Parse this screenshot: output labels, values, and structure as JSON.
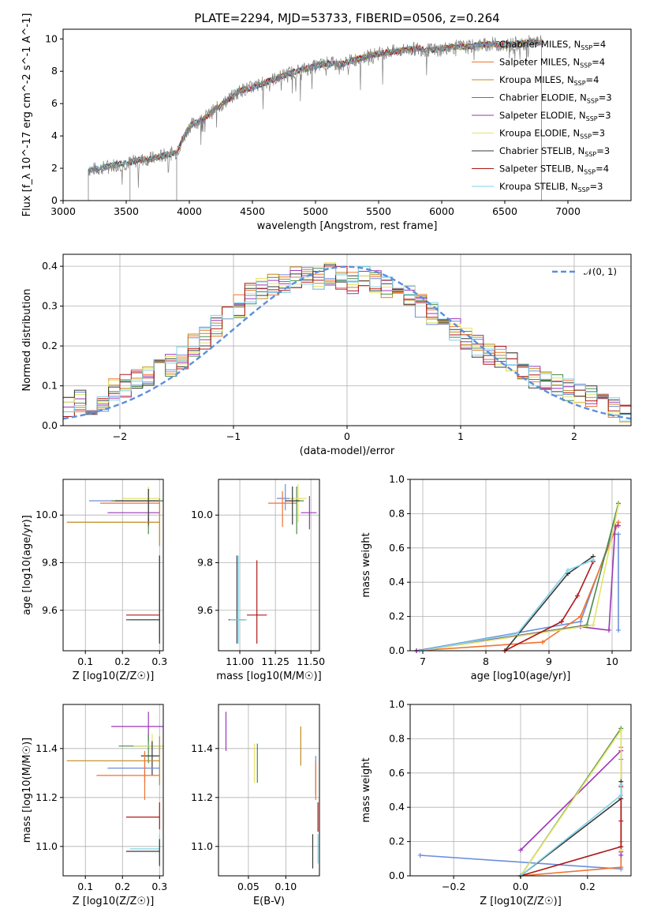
{
  "figure": {
    "title": "PLATE=2294, MJD=53733, FIBERID=0506, z=0.264"
  },
  "models": [
    {
      "name": "Chabrier MILES, N$_{SSP}$=4",
      "label": "Chabrier MILES, N",
      "nssp": "4",
      "color": "#6a8fdc"
    },
    {
      "name": "Salpeter MILES, N$_{SSP}$=4",
      "label": "Salpeter MILES, N",
      "nssp": "4",
      "color": "#f0722f"
    },
    {
      "name": "Kroupa MILES, N$_{SSP}$=4",
      "label": "Kroupa MILES, N",
      "nssp": "4",
      "color": "#c08a1c"
    },
    {
      "name": "Chabrier ELODIE, N$_{SSP}$=3",
      "label": "Chabrier ELODIE, N",
      "nssp": "3",
      "color": "#4a8a4a"
    },
    {
      "name": "Salpeter ELODIE, N$_{SSP}$=3",
      "label": "Salpeter ELODIE, N",
      "nssp": "3",
      "color": "#9b36b7"
    },
    {
      "name": "Kroupa ELODIE, N$_{SSP}$=3",
      "label": "Kroupa ELODIE, N",
      "nssp": "3",
      "color": "#e3e36a"
    },
    {
      "name": "Chabrier STELIB, N$_{SSP}$=3",
      "label": "Chabrier STELIB, N",
      "nssp": "3",
      "color": "#3a3a3a"
    },
    {
      "name": "Salpeter STELIB, N$_{SSP}$=4",
      "label": "Salpeter STELIB, N",
      "nssp": "4",
      "color": "#b01818"
    },
    {
      "name": "Kroupa STELIB, N$_{SSP}$=3",
      "label": "Kroupa STELIB, N",
      "nssp": "3",
      "color": "#7fd3e8"
    }
  ],
  "chart_data": [
    {
      "id": "spectrum",
      "type": "line",
      "title": "PLATE=2294, MJD=53733, FIBERID=0506, z=0.264",
      "xlabel": "wavelength [Angstrom, rest frame]",
      "ylabel": "Flux [f_λ 10^-17 erg cm^-2 s^-1 A^-1]",
      "xlim": [
        3000,
        7500
      ],
      "ylim": [
        0,
        10.6
      ],
      "xticks": [
        "3000",
        "3500",
        "4000",
        "4500",
        "5000",
        "5500",
        "6000",
        "6500",
        "7000"
      ],
      "yticks": [
        "0",
        "2",
        "4",
        "6",
        "8",
        "10"
      ],
      "legend_position": "upper right",
      "series": [
        {
          "name": "data",
          "color": "#808080",
          "x": [
            3200,
            3300,
            3400,
            3500,
            3600,
            3700,
            3800,
            3900,
            4000,
            4100,
            4200,
            4300,
            4400,
            4500,
            4600,
            4700,
            4800,
            4900,
            5000,
            5100,
            5200,
            5300,
            5400,
            5500,
            5600,
            5700,
            5800,
            5900,
            6000,
            6100,
            6200,
            6300,
            6400,
            6500,
            6600,
            6700,
            6800
          ],
          "y": [
            1.9,
            2.0,
            2.2,
            2.3,
            2.5,
            2.6,
            2.8,
            3.0,
            4.6,
            5.0,
            5.6,
            6.2,
            6.8,
            7.0,
            7.3,
            7.6,
            7.9,
            8.1,
            8.3,
            8.5,
            8.4,
            8.7,
            8.9,
            9.1,
            9.2,
            9.3,
            9.4,
            9.3,
            9.4,
            9.5,
            9.5,
            9.6,
            9.7,
            9.6,
            9.7,
            9.8,
            9.8
          ]
        }
      ]
    },
    {
      "id": "residual-histogram",
      "type": "bar",
      "xlabel": "(data-model)/error",
      "ylabel": "Normed distribution",
      "xlim": [
        -2.5,
        2.5
      ],
      "ylim": [
        0,
        0.43
      ],
      "xticks": [
        "−2",
        "−1",
        "0",
        "1",
        "2"
      ],
      "yticks": [
        "0.0",
        "0.1",
        "0.2",
        "0.3",
        "0.4"
      ],
      "legend": "N(0,1)",
      "bin_width": 0.1,
      "bin_start": -2.5,
      "values": [
        0.05,
        0.06,
        0.05,
        0.06,
        0.09,
        0.1,
        0.12,
        0.12,
        0.14,
        0.15,
        0.17,
        0.2,
        0.22,
        0.25,
        0.28,
        0.3,
        0.33,
        0.34,
        0.35,
        0.36,
        0.37,
        0.38,
        0.37,
        0.38,
        0.37,
        0.36,
        0.37,
        0.36,
        0.35,
        0.34,
        0.33,
        0.3,
        0.28,
        0.26,
        0.24,
        0.22,
        0.2,
        0.18,
        0.17,
        0.16,
        0.13,
        0.12,
        0.11,
        0.1,
        0.09,
        0.08,
        0.07,
        0.06,
        0.04,
        0.03
      ],
      "normal_curve": {
        "mean": 0,
        "sigma": 1
      }
    },
    {
      "id": "age-vs-Z",
      "type": "scatter",
      "xlabel": "Z [log10(Z/Z☉)]",
      "ylabel": "age [log10(age/yr)]",
      "xlim": [
        0.04,
        0.31
      ],
      "ylim": [
        9.43,
        10.15
      ],
      "xticks": [
        "0.1",
        "0.2",
        "0.3"
      ],
      "yticks": [
        "9.6",
        "9.8",
        "10.0"
      ],
      "points": [
        {
          "series": 0,
          "x": 0.27,
          "y": 10.06,
          "xerr": [
            0.16,
            0.04
          ],
          "yerr": [
            0.1,
            0.05
          ]
        },
        {
          "series": 1,
          "x": 0.27,
          "y": 10.05,
          "xerr": [
            0.13,
            0.03
          ],
          "yerr": [
            0.1,
            0.05
          ]
        },
        {
          "series": 3,
          "x": 0.27,
          "y": 10.06,
          "xerr": [
            0.1,
            0.04
          ],
          "yerr": [
            0.14,
            0.05
          ]
        },
        {
          "series": 4,
          "x": 0.27,
          "y": 10.01,
          "xerr": [
            0.11,
            0.03
          ],
          "yerr": [
            0.05,
            0.05
          ]
        },
        {
          "series": 5,
          "x": 0.27,
          "y": 10.07,
          "xerr": [
            0.07,
            0.03
          ],
          "yerr": [
            0.08,
            0.05
          ]
        },
        {
          "series": 6,
          "x": 0.27,
          "y": 10.06,
          "xerr": [
            0.09,
            0.03
          ],
          "yerr": [
            0.1,
            0.05
          ]
        },
        {
          "series": 2,
          "x": 0.3,
          "y": 9.97,
          "xerr": [
            0.25,
            0.0
          ],
          "yerr": [
            0.1,
            0.1
          ]
        },
        {
          "series": 7,
          "x": 0.3,
          "y": 9.58,
          "xerr": [
            0.09,
            0.0
          ],
          "yerr": [
            0.1,
            0.25
          ]
        },
        {
          "series": 8,
          "x": 0.3,
          "y": 9.56,
          "xerr": [
            0.08,
            0.0
          ],
          "yerr": [
            0.1,
            0.27
          ]
        },
        {
          "series": 6,
          "x": 0.3,
          "y": 9.56,
          "xerr": [
            0.09,
            0.0
          ],
          "yerr": [
            0.1,
            0.27
          ]
        }
      ]
    },
    {
      "id": "age-vs-mass",
      "type": "scatter",
      "xlabel": "mass [log10(M/M☉)]",
      "ylabel": "",
      "xlim": [
        10.85,
        11.56
      ],
      "ylim": [
        9.43,
        10.15
      ],
      "xticks": [
        "11.00",
        "11.25",
        "11.50"
      ],
      "yticks": [
        "9.6",
        "9.8",
        "10.0"
      ],
      "points": [
        {
          "series": 0,
          "x": 11.32,
          "y": 10.07,
          "xerr": [
            0.06,
            0.06
          ],
          "yerr": [
            0.05,
            0.06
          ]
        },
        {
          "series": 1,
          "x": 11.3,
          "y": 10.05,
          "xerr": [
            0.1,
            0.1
          ],
          "yerr": [
            0.1,
            0.05
          ]
        },
        {
          "series": 3,
          "x": 11.4,
          "y": 10.06,
          "xerr": [
            0.05,
            0.05
          ],
          "yerr": [
            0.14,
            0.06
          ]
        },
        {
          "series": 4,
          "x": 11.49,
          "y": 10.01,
          "xerr": [
            0.06,
            0.05
          ],
          "yerr": [
            0.07,
            0.07
          ]
        },
        {
          "series": 5,
          "x": 11.41,
          "y": 10.07,
          "xerr": [
            0.06,
            0.06
          ],
          "yerr": [
            0.1,
            0.06
          ]
        },
        {
          "series": 6,
          "x": 11.37,
          "y": 10.06,
          "xerr": [
            0.05,
            0.05
          ],
          "yerr": [
            0.1,
            0.06
          ]
        },
        {
          "series": 7,
          "x": 11.12,
          "y": 9.58,
          "xerr": [
            0.07,
            0.07
          ],
          "yerr": [
            0.12,
            0.23
          ]
        },
        {
          "series": 6,
          "x": 10.98,
          "y": 9.56,
          "xerr": [
            0.06,
            0.06
          ],
          "yerr": [
            0.1,
            0.27
          ]
        },
        {
          "series": 8,
          "x": 10.99,
          "y": 9.56,
          "xerr": [
            0.06,
            0.06
          ],
          "yerr": [
            0.1,
            0.27
          ]
        }
      ]
    },
    {
      "id": "mass-weight-vs-age",
      "type": "line",
      "xlabel": "age [log10(age/yr)]",
      "ylabel": "mass weight",
      "xlim": [
        6.8,
        10.3
      ],
      "ylim": [
        0,
        1.0
      ],
      "xticks": [
        "7",
        "8",
        "9",
        "10"
      ],
      "yticks": [
        "0.0",
        "0.2",
        "0.4",
        "0.6",
        "0.8",
        "1.0"
      ],
      "series": [
        {
          "series": 0,
          "x": [
            6.9,
            9.5,
            10.0,
            10.1,
            10.1
          ],
          "y": [
            0.0,
            0.17,
            0.68,
            0.68,
            0.12
          ]
        },
        {
          "series": 1,
          "x": 6.9,
          "y": 0,
          "x_list": [
            6.9,
            8.9,
            9.5,
            10.1
          ],
          "y_list": [
            0.0,
            0.05,
            0.2,
            0.75
          ]
        },
        {
          "series": 3,
          "x_list": [
            6.9,
            9.6,
            10.1
          ],
          "y_list": [
            0.0,
            0.15,
            0.86
          ]
        },
        {
          "series": 4,
          "x_list": [
            6.9,
            9.5,
            9.95,
            10.05,
            10.1
          ],
          "y_list": [
            0.0,
            0.14,
            0.12,
            0.73,
            0.73
          ]
        },
        {
          "series": 5,
          "x_list": [
            6.95,
            9.7,
            10.1
          ],
          "y_list": [
            0.0,
            0.15,
            0.85
          ]
        },
        {
          "series": 6,
          "x_list": [
            8.3,
            9.3,
            9.7
          ],
          "y_list": [
            0.0,
            0.45,
            0.55
          ]
        },
        {
          "series": 7,
          "x_list": [
            8.3,
            9.2,
            9.45,
            9.7
          ],
          "y_list": [
            0.0,
            0.17,
            0.32,
            0.52
          ]
        },
        {
          "series": 8,
          "x_list": [
            6.95,
            8.5,
            9.3,
            9.7
          ],
          "y_list": [
            0.0,
            0.1,
            0.47,
            0.53
          ]
        }
      ]
    },
    {
      "id": "mass-vs-Z",
      "type": "scatter",
      "xlabel": "Z [log10(Z/Z☉)]",
      "ylabel": "mass [log10(M/M☉)]",
      "xlim": [
        0.04,
        0.31
      ],
      "ylim": [
        10.88,
        11.58
      ],
      "xticks": [
        "0.1",
        "0.2",
        "0.3"
      ],
      "yticks": [
        "11.0",
        "11.2",
        "11.4"
      ],
      "points": [
        {
          "series": 4,
          "x": 0.27,
          "y": 11.49,
          "xerr": [
            0.1,
            0.04
          ],
          "yerr": [
            0.06,
            0.06
          ]
        },
        {
          "series": 3,
          "x": 0.27,
          "y": 11.41,
          "xerr": [
            0.08,
            0.04
          ],
          "yerr": [
            0.07,
            0.05
          ]
        },
        {
          "series": 5,
          "x": 0.28,
          "y": 11.41,
          "xerr": [
            0.05,
            0.03
          ],
          "yerr": [
            0.05,
            0.05
          ]
        },
        {
          "series": 6,
          "x": 0.28,
          "y": 11.37,
          "xerr": [
            0.03,
            0.02
          ],
          "yerr": [
            0.08,
            0.06
          ]
        },
        {
          "series": 2,
          "x": 0.3,
          "y": 11.35,
          "xerr": [
            0.25,
            0.0
          ],
          "yerr": [
            0.1,
            0.1
          ]
        },
        {
          "series": 0,
          "x": 0.26,
          "y": 11.32,
          "xerr": [
            0.1,
            0.04
          ],
          "yerr": [
            0.06,
            0.06
          ]
        },
        {
          "series": 1,
          "x": 0.26,
          "y": 11.29,
          "xerr": [
            0.13,
            0.04
          ],
          "yerr": [
            0.1,
            0.1
          ]
        },
        {
          "series": 7,
          "x": 0.3,
          "y": 11.12,
          "xerr": [
            0.09,
            0.0
          ],
          "yerr": [
            0.05,
            0.06
          ]
        },
        {
          "series": 8,
          "x": 0.3,
          "y": 10.99,
          "xerr": [
            0.08,
            0.0
          ],
          "yerr": [
            0.06,
            0.06
          ]
        },
        {
          "series": 6,
          "x": 0.3,
          "y": 10.98,
          "xerr": [
            0.09,
            0.0
          ],
          "yerr": [
            0.06,
            0.05
          ]
        }
      ]
    },
    {
      "id": "mass-vs-EBV",
      "type": "scatter",
      "xlabel": "E(B-V)",
      "ylabel": "",
      "xlim": [
        0.01,
        0.145
      ],
      "ylim": [
        10.88,
        11.58
      ],
      "xticks": [
        "0.05",
        "0.10"
      ],
      "yticks": [
        "11.0",
        "11.2",
        "11.4"
      ],
      "points": [
        {
          "series": 4,
          "x": 0.02,
          "y": 11.47,
          "yerr": [
            0.08,
            0.08
          ]
        },
        {
          "series": 5,
          "x": 0.058,
          "y": 11.34,
          "yerr": [
            0.08,
            0.08
          ]
        },
        {
          "series": 3,
          "x": 0.062,
          "y": 11.34,
          "yerr": [
            0.08,
            0.08
          ]
        },
        {
          "series": 2,
          "x": 0.12,
          "y": 11.41,
          "yerr": [
            0.08,
            0.08
          ]
        },
        {
          "series": 0,
          "x": 0.14,
          "y": 11.29,
          "yerr": [
            0.08,
            0.08
          ]
        },
        {
          "series": 1,
          "x": 0.14,
          "y": 11.27,
          "yerr": [
            0.08,
            0.08
          ]
        },
        {
          "series": 7,
          "x": 0.143,
          "y": 11.12,
          "yerr": [
            0.06,
            0.06
          ]
        },
        {
          "series": 6,
          "x": 0.136,
          "y": 10.98,
          "yerr": [
            0.07,
            0.07
          ]
        },
        {
          "series": 8,
          "x": 0.143,
          "y": 10.99,
          "yerr": [
            0.06,
            0.06
          ]
        }
      ]
    },
    {
      "id": "mass-weight-vs-Z",
      "type": "line",
      "xlabel": "Z [log10(Z/Z☉)]",
      "ylabel": "mass weight",
      "xlim": [
        -0.33,
        0.33
      ],
      "ylim": [
        0,
        1.0
      ],
      "xticks": [
        "−0.2",
        "0.0",
        "0.2"
      ],
      "yticks": [
        "0.0",
        "0.2",
        "0.4",
        "0.6",
        "0.8",
        "1.0"
      ],
      "series": [
        {
          "series": 0,
          "x_list": [
            -0.3,
            0.3,
            0.3,
            0.3
          ],
          "y_list": [
            0.12,
            0.04,
            0.68,
            0.17
          ]
        },
        {
          "series": 1,
          "x_list": [
            0.0,
            0.3,
            0.3,
            0.3
          ],
          "y_list": [
            0.0,
            0.05,
            0.75,
            0.2
          ]
        },
        {
          "series": 3,
          "x_list": [
            0.0,
            0.3,
            0.3
          ],
          "y_list": [
            0.0,
            0.86,
            0.15
          ]
        },
        {
          "series": 4,
          "x_list": [
            0.0,
            0.3,
            0.3,
            0.3
          ],
          "y_list": [
            0.15,
            0.73,
            0.12,
            0.14
          ]
        },
        {
          "series": 5,
          "x_list": [
            0.0,
            0.3,
            0.3
          ],
          "y_list": [
            0.0,
            0.85,
            0.15
          ]
        },
        {
          "series": 6,
          "x_list": [
            0.0,
            0.3,
            0.3
          ],
          "y_list": [
            0.0,
            0.45,
            0.55
          ]
        },
        {
          "series": 7,
          "x_list": [
            0.0,
            0.3,
            0.3,
            0.3
          ],
          "y_list": [
            0.0,
            0.17,
            0.32,
            0.52
          ]
        },
        {
          "series": 8,
          "x_list": [
            0.0,
            0.3,
            0.3
          ],
          "y_list": [
            0.0,
            0.47,
            0.53
          ]
        }
      ]
    }
  ]
}
